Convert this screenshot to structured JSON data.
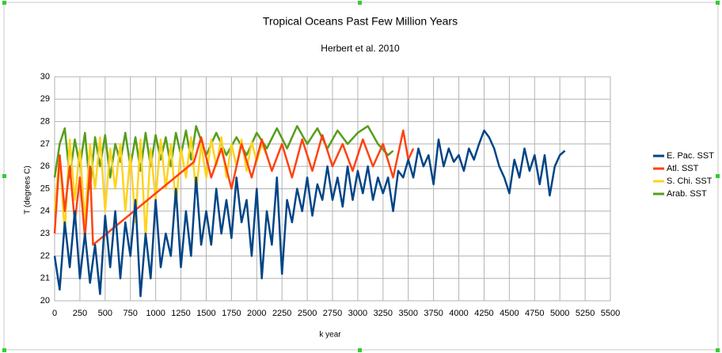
{
  "chart_data": {
    "type": "line",
    "title": "Tropical Oceans Past Few Million Years",
    "subtitle": "Herbert et al. 2010",
    "xlabel": "k year",
    "ylabel": "T (degrees C)",
    "xlim": [
      0,
      5500
    ],
    "xticks": [
      0,
      250,
      500,
      750,
      1000,
      1250,
      1500,
      1750,
      2000,
      2250,
      2500,
      2750,
      3000,
      3250,
      3500,
      3750,
      4000,
      4250,
      4500,
      4750,
      5000,
      5250,
      5500
    ],
    "ylim": [
      20,
      30
    ],
    "yticks": [
      20,
      21,
      22,
      23,
      24,
      25,
      26,
      27,
      28,
      29,
      30
    ],
    "grid": true,
    "legend": "right",
    "series": [
      {
        "name": "E. Pac. SST",
        "color": "#004586",
        "x": [
          0,
          50,
          100,
          150,
          200,
          250,
          300,
          350,
          400,
          450,
          500,
          550,
          600,
          650,
          700,
          750,
          800,
          850,
          900,
          950,
          1000,
          1050,
          1100,
          1150,
          1200,
          1250,
          1300,
          1350,
          1400,
          1450,
          1500,
          1550,
          1600,
          1650,
          1700,
          1750,
          1800,
          1850,
          1900,
          1950,
          2000,
          2050,
          2100,
          2150,
          2200,
          2250,
          2300,
          2350,
          2400,
          2450,
          2500,
          2550,
          2600,
          2650,
          2700,
          2750,
          2800,
          2850,
          2900,
          2950,
          3000,
          3050,
          3100,
          3150,
          3200,
          3250,
          3300,
          3350,
          3400,
          3450,
          3500,
          3550,
          3600,
          3650,
          3700,
          3750,
          3800,
          3850,
          3900,
          3950,
          4000,
          4050,
          4100,
          4150,
          4200,
          4250,
          4300,
          4350,
          4400,
          4450,
          4500,
          4550,
          4600,
          4650,
          4700,
          4750,
          4800,
          4850,
          4900,
          4950,
          5000,
          5050
        ],
        "values": [
          22.0,
          20.5,
          23.5,
          21.5,
          24,
          21,
          23,
          20.8,
          22.5,
          20.3,
          23.8,
          21.5,
          24,
          21,
          23.5,
          22,
          24.5,
          20.2,
          23,
          21,
          24.5,
          21.5,
          23,
          22,
          25,
          21.5,
          24,
          22,
          25.5,
          22.5,
          24,
          22.5,
          25,
          23,
          24.5,
          22.8,
          25.5,
          23.5,
          24.5,
          22,
          25,
          21,
          24,
          22.5,
          25.5,
          21.2,
          24.5,
          23.5,
          25,
          24,
          25.5,
          23.8,
          25.2,
          24.5,
          26,
          24.5,
          25.5,
          24.2,
          26,
          24.5,
          25.8,
          24.8,
          26,
          24.5,
          25.5,
          24.8,
          25.5,
          24,
          25.8,
          25.5,
          26.3,
          25.5,
          26.8,
          26,
          26.5,
          25.2,
          27.2,
          26,
          26.8,
          26.2,
          26.5,
          25.8,
          26.8,
          26.3,
          27,
          27.6,
          27.3,
          26.8,
          26,
          25.5,
          24.8,
          26.3,
          25.5,
          26.8,
          25.8,
          26.5,
          25.2,
          26.5,
          24.7,
          26,
          26.5,
          26.7
        ]
      },
      {
        "name": "Atl. SST",
        "color": "#ff420e",
        "x": [
          0,
          50,
          100,
          150,
          200,
          250,
          300,
          350,
          380,
          1380,
          1450,
          1550,
          1650,
          1750,
          1850,
          1950,
          2050,
          2150,
          2250,
          2350,
          2450,
          2550,
          2650,
          2750,
          2850,
          2950,
          3050,
          3150,
          3250,
          3350,
          3450,
          3500,
          3550
        ],
        "values": [
          23,
          26.5,
          24,
          26,
          23.5,
          25.5,
          22.8,
          26,
          22.5,
          26.2,
          27.3,
          25.5,
          26.8,
          25,
          27,
          25.5,
          27.2,
          25.8,
          27,
          25.5,
          27.2,
          25.8,
          27.4,
          26,
          27,
          25.8,
          27.2,
          26,
          27,
          25.5,
          27.6,
          26.3,
          26.8
        ]
      },
      {
        "name": "S. Chi. SST",
        "color": "#ffd320",
        "x": [
          0,
          50,
          100,
          150,
          200,
          250,
          300,
          350,
          400,
          450,
          500,
          550,
          600,
          650,
          700,
          750,
          800,
          850,
          900,
          950,
          1000,
          1050,
          1100,
          1150,
          1200,
          1250,
          1300,
          1350,
          1400,
          1450,
          1500,
          1550,
          1600,
          1650,
          1700,
          1750,
          1800,
          1850,
          1900,
          1950,
          2000,
          2050,
          2100
        ],
        "values": [
          24,
          26.5,
          23,
          27.2,
          24.5,
          26.8,
          23.5,
          27,
          25,
          27.3,
          24,
          26.8,
          25,
          27,
          24,
          26.5,
          23.5,
          27.2,
          22.8,
          26.8,
          24.5,
          27.2,
          25,
          27,
          24.2,
          26.8,
          25.5,
          27.3,
          24.8,
          27,
          25.5,
          27.2,
          26,
          27.3,
          25.5,
          27,
          26,
          27.2,
          25.8,
          27.1,
          26.2,
          27,
          26.5
        ]
      },
      {
        "name": "Arab. SST",
        "color": "#579d1c",
        "x": [
          0,
          50,
          100,
          150,
          200,
          250,
          300,
          350,
          400,
          450,
          500,
          550,
          600,
          650,
          700,
          750,
          800,
          850,
          900,
          950,
          1000,
          1050,
          1100,
          1150,
          1200,
          1250,
          1300,
          1350,
          1400,
          1500,
          1600,
          1700,
          1800,
          1900,
          2000,
          2100,
          2200,
          2300,
          2400,
          2500,
          2600,
          2700,
          2800,
          2900,
          3000,
          3100,
          3200,
          3300,
          3350
        ],
        "values": [
          25.5,
          27,
          27.7,
          25.5,
          27.2,
          26,
          27.5,
          25,
          27.3,
          26,
          27.4,
          25.5,
          27,
          26.2,
          27.5,
          26,
          27.3,
          25.8,
          27.5,
          26,
          27.4,
          26.3,
          27.3,
          26,
          27.5,
          26.5,
          27.6,
          26.3,
          27.8,
          26.5,
          27.5,
          26.5,
          27.3,
          26.5,
          27.5,
          26.8,
          27.7,
          26.8,
          27.8,
          27,
          27.7,
          26.8,
          27.6,
          27,
          27.5,
          27.8,
          27,
          26.5,
          26.7
        ]
      }
    ]
  }
}
